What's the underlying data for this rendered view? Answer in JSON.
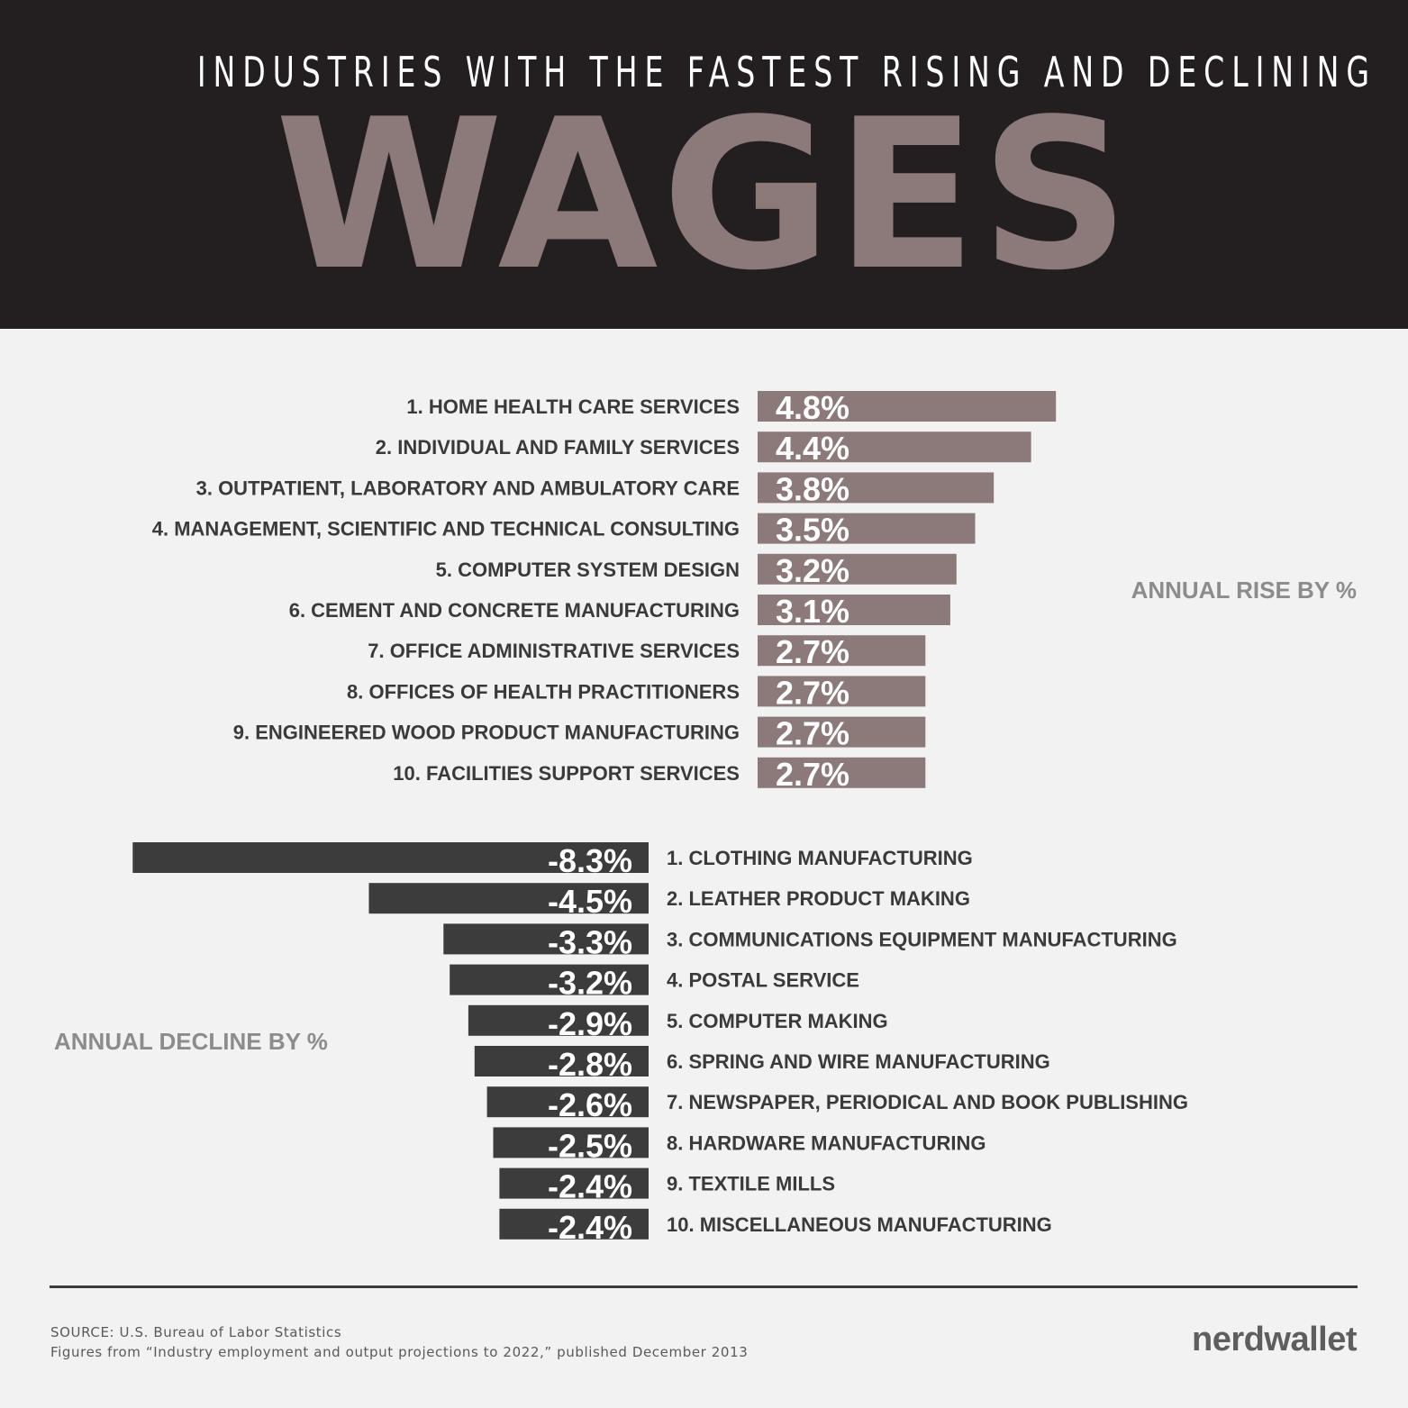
{
  "header": {
    "subtitle": "INDUSTRIES WITH THE FASTEST RISING AND DECLINING",
    "title": "WAGES"
  },
  "colors": {
    "header_bg": "#231f20",
    "title": "#8c7a7b",
    "rise_bar": "#8c7a7b",
    "decline_bar": "#3d3c3d",
    "background": "#f2f2f2"
  },
  "chart_data": [
    {
      "type": "bar",
      "orientation": "horizontal",
      "title": "ANNUAL RISE BY %",
      "categories": [
        "1. HOME HEALTH CARE SERVICES",
        "2. INDIVIDUAL AND FAMILY SERVICES",
        "3. OUTPATIENT, LABORATORY AND AMBULATORY CARE",
        "4. MANAGEMENT, SCIENTIFIC AND TECHNICAL CONSULTING",
        "5. COMPUTER SYSTEM DESIGN",
        "6. CEMENT AND CONCRETE MANUFACTURING",
        "7. OFFICE ADMINISTRATIVE SERVICES",
        "8. OFFICES OF HEALTH PRACTITIONERS",
        "9. ENGINEERED WOOD PRODUCT MANUFACTURING",
        "10.  FACILITIES SUPPORT SERVICES"
      ],
      "values": [
        4.8,
        4.4,
        3.8,
        3.5,
        3.2,
        3.1,
        2.7,
        2.7,
        2.7,
        2.7
      ],
      "value_labels": [
        "4.8%",
        "4.4%",
        "3.8%",
        "3.5%",
        "3.2%",
        "3.1%",
        "2.7%",
        "2.7%",
        "2.7%",
        "2.7%"
      ],
      "grid": false
    },
    {
      "type": "bar",
      "orientation": "horizontal",
      "title": "ANNUAL DECLINE BY %",
      "categories": [
        "1. CLOTHING MANUFACTURING",
        "2. LEATHER PRODUCT MAKING",
        "3. COMMUNICATIONS EQUIPMENT MANUFACTURING",
        "4. POSTAL SERVICE",
        "5. COMPUTER MAKING",
        "6. SPRING AND WIRE MANUFACTURING",
        "7. NEWSPAPER, PERIODICAL AND BOOK PUBLISHING",
        "8. HARDWARE MANUFACTURING",
        "9. TEXTILE MILLS",
        "10. MISCELLANEOUS MANUFACTURING"
      ],
      "values": [
        -8.3,
        -4.5,
        -3.3,
        -3.2,
        -2.9,
        -2.8,
        -2.6,
        -2.5,
        -2.4,
        -2.4
      ],
      "value_labels": [
        "-8.3%",
        "-4.5%",
        "-3.3%",
        "-3.2%",
        "-2.9%",
        "-2.8%",
        "-2.6%",
        "-2.5%",
        "-2.4%",
        "-2.4%"
      ],
      "grid": false
    }
  ],
  "footer": {
    "source": "SOURCE: U.S. Bureau of Labor Statistics",
    "note": "Figures from “Industry employment and output projections to 2022,” published December 2013",
    "brand": "nerdwallet"
  }
}
